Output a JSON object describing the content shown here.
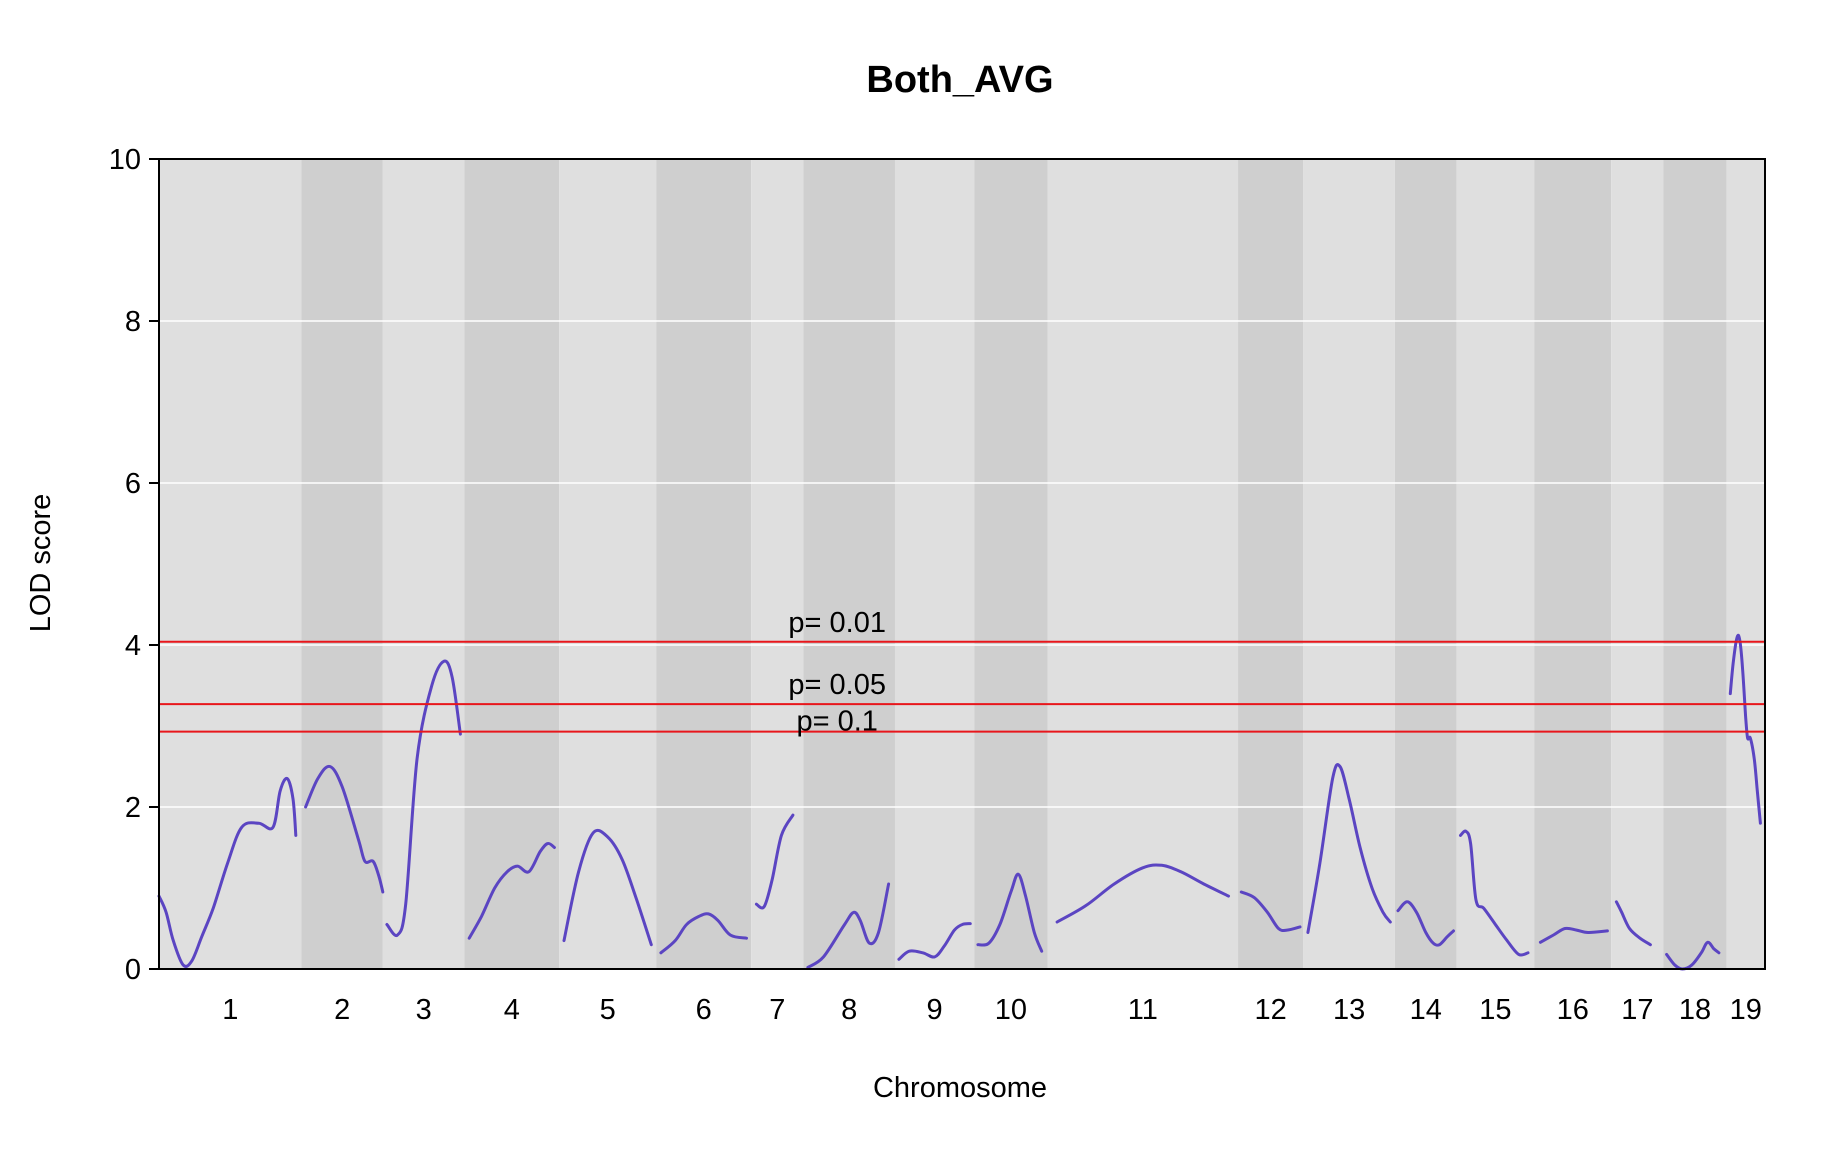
{
  "chart_data": {
    "type": "line",
    "title": "Both_AVG",
    "xlabel": "Chromosome",
    "ylabel": "LOD score",
    "ylim": [
      0,
      10
    ],
    "yticks": [
      0,
      2,
      4,
      6,
      8,
      10
    ],
    "grid": true,
    "colors": {
      "series": "#5b45c2",
      "threshold": "#e8161b",
      "band_light": "#dfdfdf",
      "band_dark": "#cfcfcf",
      "grid": "#ffffff"
    },
    "chromosomes": [
      {
        "label": "1",
        "span": [
          0.0,
          0.0924
        ]
      },
      {
        "label": "2",
        "span": [
          0.0924,
          0.1451
        ]
      },
      {
        "label": "3",
        "span": [
          0.1451,
          0.198
        ]
      },
      {
        "label": "4",
        "span": [
          0.198,
          0.2594
        ]
      },
      {
        "label": "5",
        "span": [
          0.2594,
          0.3223
        ]
      },
      {
        "label": "6",
        "span": [
          0.3223,
          0.3839
        ]
      },
      {
        "label": "7",
        "span": [
          0.3839,
          0.4177
        ]
      },
      {
        "label": "8",
        "span": [
          0.4177,
          0.4771
        ]
      },
      {
        "label": "9",
        "span": [
          0.4771,
          0.5285
        ]
      },
      {
        "label": "10",
        "span": [
          0.5285,
          0.576
        ]
      },
      {
        "label": "11",
        "span": [
          0.576,
          0.6995
        ]
      },
      {
        "label": "12",
        "span": [
          0.6995,
          0.7418
        ]
      },
      {
        "label": "13",
        "span": [
          0.7418,
          0.8012
        ]
      },
      {
        "label": "14",
        "span": [
          0.8012,
          0.8412
        ]
      },
      {
        "label": "15",
        "span": [
          0.8412,
          0.8915
        ]
      },
      {
        "label": "16",
        "span": [
          0.8915,
          0.9414
        ]
      },
      {
        "label": "17",
        "span": [
          0.9414,
          0.9753
        ]
      },
      {
        "label": "18",
        "span": [
          0.9753,
          1.0161
        ]
      },
      {
        "label": "19",
        "span": [
          1.0161,
          1.0411
        ]
      }
    ],
    "thresholds": [
      {
        "label": "p= 0.01",
        "value": 4.04
      },
      {
        "label": "p= 0.05",
        "value": 3.27
      },
      {
        "label": "p= 0.1",
        "value": 2.93
      }
    ],
    "series": [
      {
        "chromosome": "1",
        "points": [
          [
            0.0,
            0.9
          ],
          [
            0.05,
            0.7
          ],
          [
            0.1,
            0.35
          ],
          [
            0.17,
            0.05
          ],
          [
            0.23,
            0.1
          ],
          [
            0.3,
            0.4
          ],
          [
            0.38,
            0.75
          ],
          [
            0.48,
            1.3
          ],
          [
            0.58,
            1.75
          ],
          [
            0.7,
            1.8
          ],
          [
            0.8,
            1.75
          ],
          [
            0.85,
            2.2
          ],
          [
            0.9,
            2.35
          ],
          [
            0.94,
            2.1
          ],
          [
            0.96,
            1.65
          ]
        ]
      },
      {
        "chromosome": "2",
        "points": [
          [
            0.05,
            2.0
          ],
          [
            0.2,
            2.35
          ],
          [
            0.35,
            2.5
          ],
          [
            0.5,
            2.25
          ],
          [
            0.7,
            1.6
          ],
          [
            0.78,
            1.33
          ],
          [
            0.88,
            1.33
          ],
          [
            0.95,
            1.15
          ],
          [
            1.0,
            0.95
          ]
        ]
      },
      {
        "chromosome": "3",
        "points": [
          [
            0.05,
            0.55
          ],
          [
            0.18,
            0.42
          ],
          [
            0.28,
            0.8
          ],
          [
            0.42,
            2.6
          ],
          [
            0.6,
            3.5
          ],
          [
            0.75,
            3.8
          ],
          [
            0.85,
            3.6
          ],
          [
            0.95,
            2.9
          ]
        ]
      },
      {
        "chromosome": "4",
        "points": [
          [
            0.05,
            0.38
          ],
          [
            0.18,
            0.65
          ],
          [
            0.32,
            1.0
          ],
          [
            0.45,
            1.2
          ],
          [
            0.56,
            1.27
          ],
          [
            0.68,
            1.2
          ],
          [
            0.8,
            1.45
          ],
          [
            0.88,
            1.55
          ],
          [
            0.95,
            1.5
          ]
        ]
      },
      {
        "chromosome": "5",
        "points": [
          [
            0.05,
            0.35
          ],
          [
            0.2,
            1.2
          ],
          [
            0.35,
            1.68
          ],
          [
            0.5,
            1.63
          ],
          [
            0.65,
            1.35
          ],
          [
            0.8,
            0.85
          ],
          [
            0.95,
            0.3
          ]
        ]
      },
      {
        "chromosome": "6",
        "points": [
          [
            0.05,
            0.2
          ],
          [
            0.2,
            0.35
          ],
          [
            0.32,
            0.55
          ],
          [
            0.45,
            0.65
          ],
          [
            0.55,
            0.68
          ],
          [
            0.65,
            0.6
          ],
          [
            0.78,
            0.42
          ],
          [
            0.95,
            0.38
          ]
        ]
      },
      {
        "chromosome": "7",
        "points": [
          [
            0.1,
            0.8
          ],
          [
            0.25,
            0.77
          ],
          [
            0.4,
            1.1
          ],
          [
            0.58,
            1.65
          ],
          [
            0.8,
            1.9
          ]
        ]
      },
      {
        "chromosome": "8",
        "points": [
          [
            0.05,
            0.02
          ],
          [
            0.22,
            0.15
          ],
          [
            0.45,
            0.55
          ],
          [
            0.55,
            0.7
          ],
          [
            0.62,
            0.6
          ],
          [
            0.72,
            0.32
          ],
          [
            0.82,
            0.45
          ],
          [
            0.93,
            1.05
          ]
        ]
      },
      {
        "chromosome": "9",
        "points": [
          [
            0.05,
            0.12
          ],
          [
            0.18,
            0.22
          ],
          [
            0.35,
            0.2
          ],
          [
            0.5,
            0.15
          ],
          [
            0.62,
            0.28
          ],
          [
            0.75,
            0.48
          ],
          [
            0.85,
            0.55
          ],
          [
            0.95,
            0.56
          ]
        ]
      },
      {
        "chromosome": "10",
        "points": [
          [
            0.05,
            0.3
          ],
          [
            0.2,
            0.32
          ],
          [
            0.35,
            0.55
          ],
          [
            0.5,
            0.95
          ],
          [
            0.6,
            1.17
          ],
          [
            0.7,
            0.9
          ],
          [
            0.82,
            0.45
          ],
          [
            0.92,
            0.22
          ]
        ]
      },
      {
        "chromosome": "11",
        "points": [
          [
            0.05,
            0.58
          ],
          [
            0.2,
            0.78
          ],
          [
            0.35,
            1.05
          ],
          [
            0.5,
            1.25
          ],
          [
            0.6,
            1.28
          ],
          [
            0.7,
            1.2
          ],
          [
            0.82,
            1.05
          ],
          [
            0.95,
            0.9
          ]
        ]
      },
      {
        "chromosome": "12",
        "points": [
          [
            0.05,
            0.95
          ],
          [
            0.25,
            0.88
          ],
          [
            0.45,
            0.7
          ],
          [
            0.62,
            0.5
          ],
          [
            0.75,
            0.48
          ],
          [
            0.95,
            0.52
          ]
        ]
      },
      {
        "chromosome": "13",
        "points": [
          [
            0.05,
            0.45
          ],
          [
            0.18,
            1.3
          ],
          [
            0.32,
            2.35
          ],
          [
            0.4,
            2.5
          ],
          [
            0.5,
            2.1
          ],
          [
            0.62,
            1.5
          ],
          [
            0.75,
            1.0
          ],
          [
            0.87,
            0.7
          ],
          [
            0.95,
            0.58
          ]
        ]
      },
      {
        "chromosome": "14",
        "points": [
          [
            0.05,
            0.72
          ],
          [
            0.2,
            0.83
          ],
          [
            0.35,
            0.7
          ],
          [
            0.5,
            0.45
          ],
          [
            0.62,
            0.32
          ],
          [
            0.72,
            0.3
          ],
          [
            0.85,
            0.4
          ],
          [
            0.95,
            0.47
          ]
        ]
      },
      {
        "chromosome": "15",
        "points": [
          [
            0.05,
            1.65
          ],
          [
            0.12,
            1.7
          ],
          [
            0.18,
            1.55
          ],
          [
            0.25,
            0.85
          ],
          [
            0.35,
            0.75
          ],
          [
            0.5,
            0.55
          ],
          [
            0.65,
            0.35
          ],
          [
            0.8,
            0.18
          ],
          [
            0.92,
            0.2
          ]
        ]
      },
      {
        "chromosome": "16",
        "points": [
          [
            0.08,
            0.33
          ],
          [
            0.25,
            0.42
          ],
          [
            0.4,
            0.5
          ],
          [
            0.55,
            0.48
          ],
          [
            0.7,
            0.45
          ],
          [
            0.95,
            0.47
          ]
        ]
      },
      {
        "chromosome": "17",
        "points": [
          [
            0.1,
            0.83
          ],
          [
            0.2,
            0.7
          ],
          [
            0.35,
            0.5
          ],
          [
            0.55,
            0.38
          ],
          [
            0.75,
            0.3
          ]
        ]
      },
      {
        "chromosome": "18",
        "points": [
          [
            0.05,
            0.18
          ],
          [
            0.18,
            0.05
          ],
          [
            0.3,
            0.0
          ],
          [
            0.45,
            0.05
          ],
          [
            0.6,
            0.2
          ],
          [
            0.7,
            0.33
          ],
          [
            0.8,
            0.25
          ],
          [
            0.88,
            0.2
          ]
        ]
      },
      {
        "chromosome": "19",
        "points": [
          [
            0.1,
            3.4
          ],
          [
            0.18,
            3.8
          ],
          [
            0.28,
            4.1
          ],
          [
            0.35,
            4.05
          ],
          [
            0.42,
            3.7
          ],
          [
            0.5,
            3.1
          ],
          [
            0.55,
            2.85
          ],
          [
            0.62,
            2.85
          ],
          [
            0.72,
            2.6
          ],
          [
            0.8,
            2.2
          ],
          [
            0.88,
            1.8
          ]
        ]
      }
    ]
  }
}
